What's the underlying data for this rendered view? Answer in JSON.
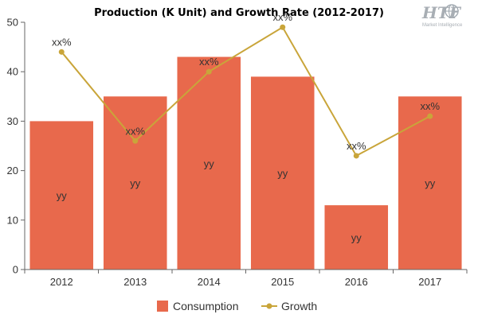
{
  "chart_data": {
    "type": "bar",
    "title": "Production (K Unit) and Growth Rate (2012-2017)",
    "categories": [
      "2012",
      "2013",
      "2014",
      "2015",
      "2016",
      "2017"
    ],
    "series": [
      {
        "name": "Consumption",
        "type": "bar",
        "values": [
          30,
          35,
          43,
          39,
          13,
          35
        ],
        "labels": [
          "yy",
          "yy",
          "yy",
          "yy",
          "yy",
          "yy"
        ],
        "color": "#e8694c"
      },
      {
        "name": "Growth",
        "type": "line",
        "values": [
          44,
          26,
          40,
          49,
          23,
          31
        ],
        "labels": [
          "xx%",
          "xx%",
          "xx%",
          "xx%",
          "xx%",
          "xx%"
        ],
        "color": "#c9a53a"
      }
    ],
    "ylim": [
      0,
      50
    ],
    "yticks": [
      0,
      10,
      20,
      30,
      40,
      50
    ],
    "grid": false,
    "legend": "bottom"
  },
  "logo": {
    "text": "HTF",
    "subtext": "Market Intelligence",
    "color": "#a8aeb4"
  }
}
